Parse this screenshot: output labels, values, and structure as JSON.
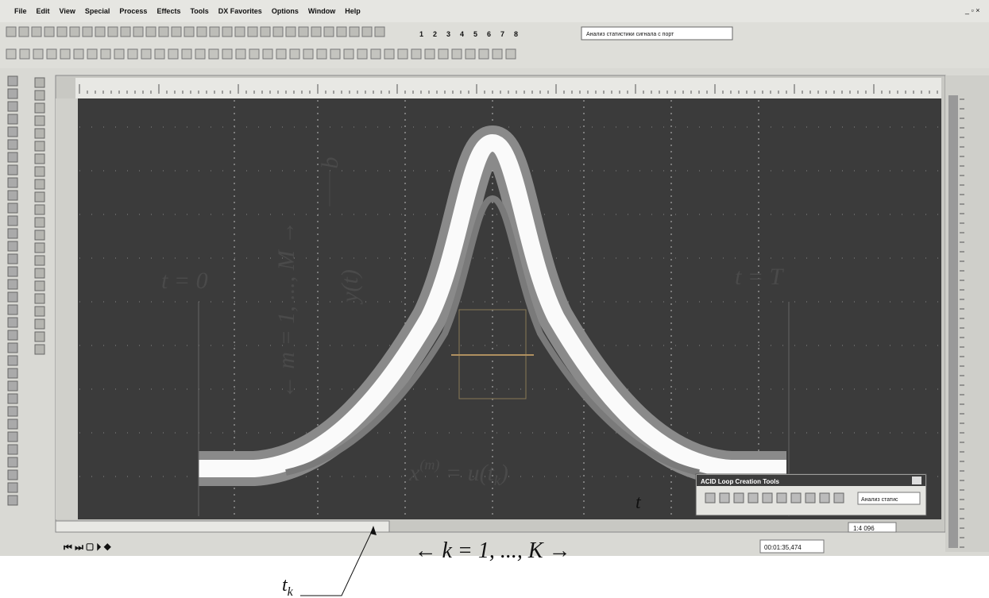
{
  "menu": [
    "File",
    "Edit",
    "View",
    "Special",
    "Process",
    "Effects",
    "Tools",
    "DX Favorites",
    "Options",
    "Window",
    "Help"
  ],
  "toolbar": {
    "track_numbers": [
      "1",
      "2",
      "3",
      "4",
      "5",
      "6",
      "7",
      "8"
    ],
    "dropdown": "Анализ статистики сигнала с порт"
  },
  "annotations": {
    "t_start": "t = 0",
    "t_end": "t = T",
    "m_range": "← m = 1, ..., M →",
    "y": "y(t)",
    "b": "b",
    "x_formula": {
      "base": "x",
      "sup": "(m)",
      "mid": " = u(t",
      "sub": "k",
      "end": ")"
    },
    "t": "t",
    "k_range": "← k = 1, ..., K →",
    "t_k": {
      "base": "t",
      "sub": "k"
    }
  },
  "acid_window": {
    "title": "ACID Loop Creation Tools",
    "field": "Анализ статис"
  },
  "status": {
    "zoom": "1:4 096",
    "time": "00:01:35,474"
  }
}
